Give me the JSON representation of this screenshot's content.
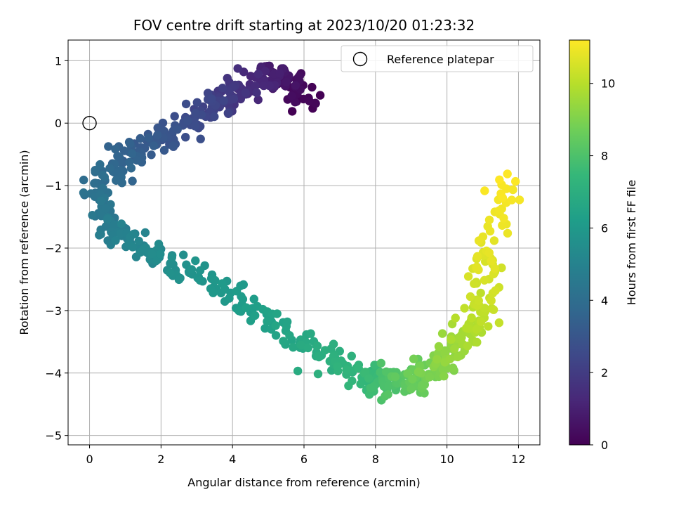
{
  "chart_data": {
    "type": "scatter",
    "title": "FOV centre drift starting at 2023/10/20 01:23:32",
    "xlabel": "Angular distance from reference (arcmin)",
    "ylabel": "Rotation from reference (arcmin)",
    "xlim": [
      -0.6,
      12.6
    ],
    "ylim": [
      -5.15,
      1.33
    ],
    "xticks": [
      0,
      2,
      4,
      6,
      8,
      10,
      12
    ],
    "yticks": [
      1,
      0,
      -1,
      -2,
      -3,
      -4,
      -5
    ],
    "grid": true,
    "legend": {
      "placement": "top-right",
      "entries": [
        {
          "label": "Reference platepar",
          "marker": "open-circle"
        }
      ]
    },
    "reference_point": {
      "x": 0,
      "y": 0
    },
    "colorbar": {
      "label": "Hours from first FF file",
      "colormap": "viridis",
      "range": [
        0,
        11.2
      ],
      "ticks": [
        0,
        2,
        4,
        6,
        8,
        10
      ]
    },
    "colormap_stops": [
      "#440154",
      "#482878",
      "#3e4989",
      "#31688e",
      "#26828e",
      "#1f9e89",
      "#35b779",
      "#6ece58",
      "#b5de2b",
      "#fde725"
    ],
    "point_trend": [
      {
        "hour": 0.0,
        "x": 6.0,
        "y": 0.4
      },
      {
        "hour": 0.8,
        "x": 5.2,
        "y": 0.8
      },
      {
        "hour": 1.6,
        "x": 4.2,
        "y": 0.5
      },
      {
        "hour": 2.4,
        "x": 3.3,
        "y": 0.2
      },
      {
        "hour": 2.9,
        "x": 2.2,
        "y": -0.2
      },
      {
        "hour": 3.5,
        "x": 1.0,
        "y": -0.5
      },
      {
        "hour": 4.1,
        "x": 0.2,
        "y": -1.1
      },
      {
        "hour": 4.7,
        "x": 0.6,
        "y": -1.7
      },
      {
        "hour": 5.4,
        "x": 2.0,
        "y": -2.1
      },
      {
        "hour": 5.9,
        "x": 3.5,
        "y": -2.6
      },
      {
        "hour": 6.4,
        "x": 5.0,
        "y": -3.2
      },
      {
        "hour": 6.9,
        "x": 6.5,
        "y": -3.7
      },
      {
        "hour": 7.5,
        "x": 7.8,
        "y": -4.1
      },
      {
        "hour": 8.3,
        "x": 8.8,
        "y": -4.2
      },
      {
        "hour": 9.0,
        "x": 9.7,
        "y": -3.9
      },
      {
        "hour": 9.6,
        "x": 10.4,
        "y": -3.5
      },
      {
        "hour": 10.2,
        "x": 11.0,
        "y": -3.0
      },
      {
        "hour": 10.8,
        "x": 11.3,
        "y": -2.0
      },
      {
        "hour": 11.2,
        "x": 11.6,
        "y": -0.9
      }
    ],
    "point_count": 760,
    "series": [
      {
        "name": "Reference platepar",
        "x": [
          0
        ],
        "y": [
          0
        ]
      }
    ]
  }
}
